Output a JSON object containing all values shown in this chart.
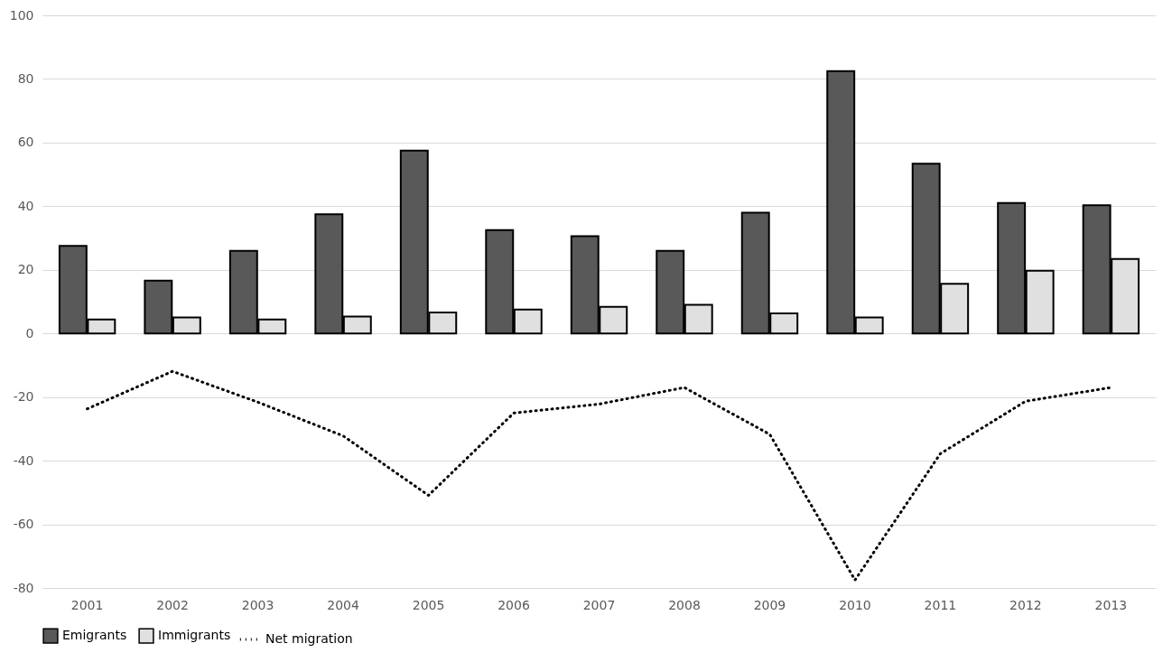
{
  "chart_data": {
    "type": "bar",
    "categories": [
      "2001",
      "2002",
      "2003",
      "2004",
      "2005",
      "2006",
      "2007",
      "2008",
      "2009",
      "2010",
      "2011",
      "2012",
      "2013"
    ],
    "series": [
      {
        "name": "Emigrants",
        "color": "#595959",
        "values": [
          27.5,
          16.6,
          26,
          37.5,
          57.5,
          32.5,
          30.6,
          26,
          38,
          82.5,
          53.4,
          41,
          40.3
        ]
      },
      {
        "name": "Immigrants",
        "color": "#e0e0e0",
        "values": [
          4.4,
          5,
          4.4,
          5.3,
          6.6,
          7.5,
          8.4,
          9,
          6.3,
          5,
          15.6,
          19.7,
          23.4
        ]
      },
      {
        "name": "Net migration",
        "type": "line",
        "color": "#000000",
        "line_style": "dotted",
        "values": [
          -23.7,
          -11.9,
          -21.6,
          -32.2,
          -50.9,
          -25,
          -22.2,
          -17,
          -31.7,
          -77.5,
          -37.8,
          -21.3,
          -17
        ]
      }
    ],
    "ylim": [
      -80,
      100
    ],
    "yticks": [
      -80,
      -60,
      -40,
      -20,
      0,
      20,
      40,
      60,
      80,
      100
    ],
    "grid": "y",
    "legend": "bottom",
    "marker": "none"
  }
}
